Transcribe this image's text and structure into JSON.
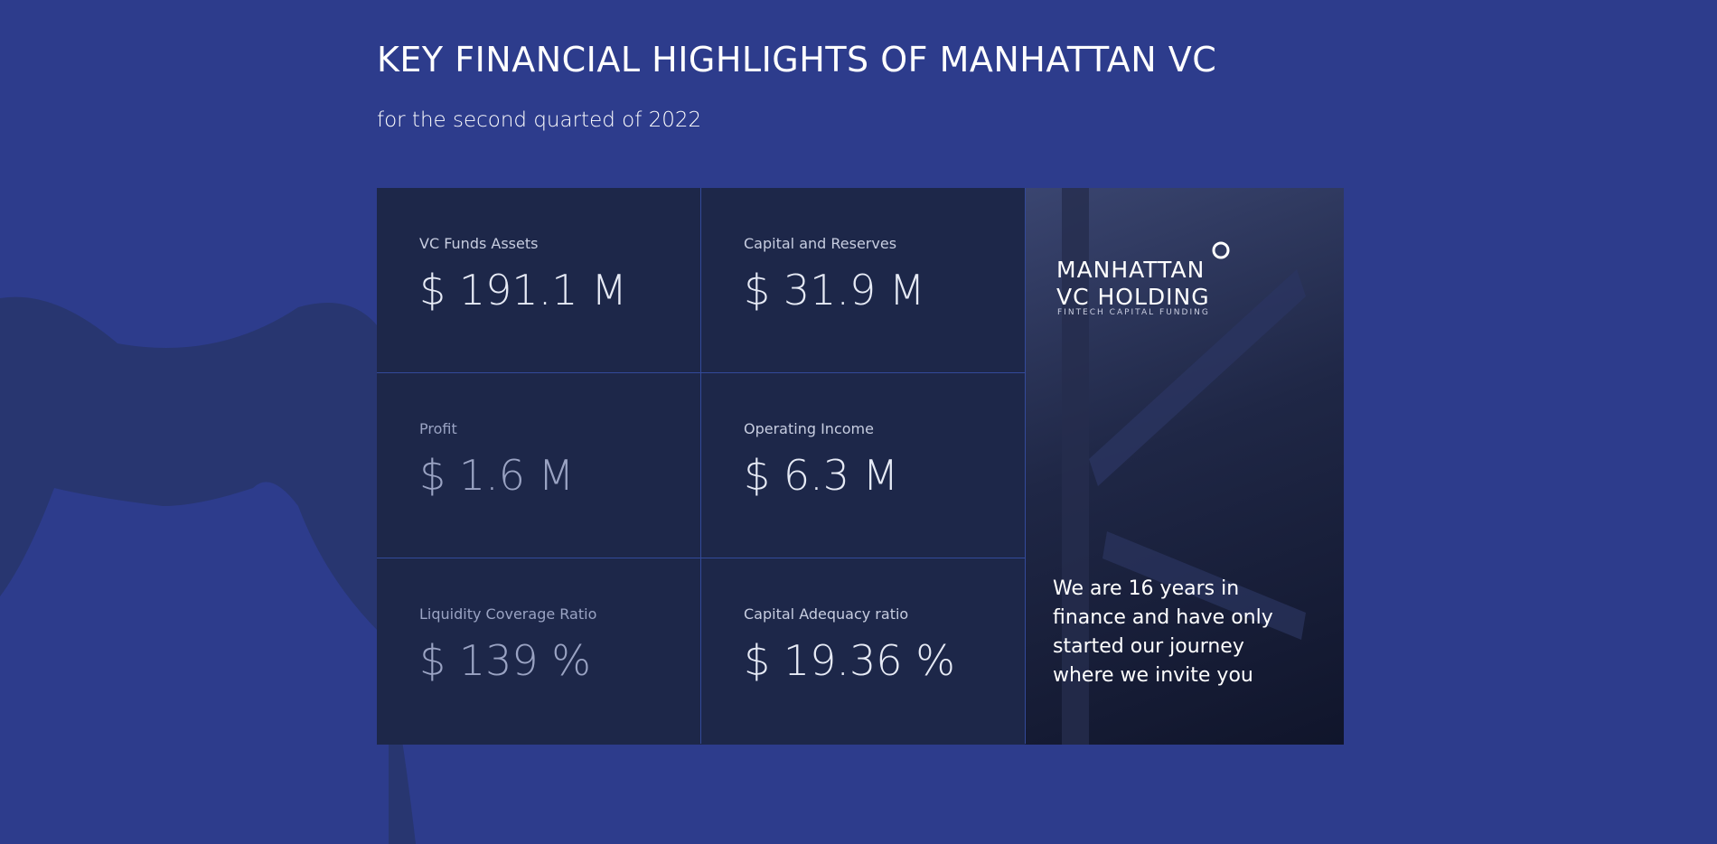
{
  "header": {
    "title": "KEY FINANCIAL HIGHLIGHTS OF MANHATTAN VC",
    "subtitle": "for the second quarted of 2022"
  },
  "metrics": [
    {
      "label": "VC Funds Assets",
      "value": "$ 191.1 M"
    },
    {
      "label": "Capital and Reserves",
      "value": "$ 31.9 M"
    },
    {
      "label": "Profit",
      "value": "$ 1.6 M"
    },
    {
      "label": "Operating Income",
      "value": "$ 6.3 M"
    },
    {
      "label": "Liquidity Coverage Ratio",
      "value": "$ 139 %"
    },
    {
      "label": "Capital Adequacy ratio",
      "value": "$ 19.36 %"
    }
  ],
  "brand": {
    "line1": "MANHATTAN",
    "line2": "VC HOLDING",
    "tagline": "FINTECH CAPITAL FUNDING"
  },
  "message": "We are 16 years in finance and have only started our journey where we invite you"
}
